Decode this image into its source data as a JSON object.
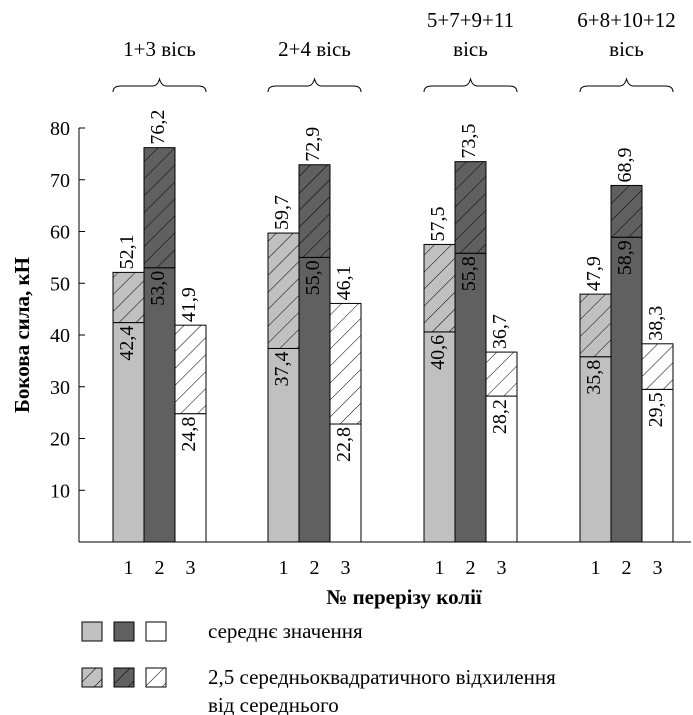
{
  "chart_data": {
    "type": "bar",
    "ylabel": "Бокова сила, кН",
    "xlabel": "№ перерізу колії",
    "ylim": [
      0,
      80
    ],
    "yticks": [
      10,
      20,
      30,
      40,
      50,
      60,
      70,
      80
    ],
    "groups": [
      {
        "title_lines": [
          "1+3 вісь"
        ],
        "bars": [
          {
            "section": "1",
            "mean": 42.4,
            "total": 52.1,
            "mean_label": "42,4",
            "total_label": "52,1"
          },
          {
            "section": "2",
            "mean": 53.0,
            "total": 76.2,
            "mean_label": "53,0",
            "total_label": "76,2"
          },
          {
            "section": "3",
            "mean": 24.8,
            "total": 41.9,
            "mean_label": "24,8",
            "total_label": "41,9"
          }
        ]
      },
      {
        "title_lines": [
          "2+4 вісь"
        ],
        "bars": [
          {
            "section": "1",
            "mean": 37.4,
            "total": 59.7,
            "mean_label": "37,4",
            "total_label": "59,7"
          },
          {
            "section": "2",
            "mean": 55.0,
            "total": 72.9,
            "mean_label": "55,0",
            "total_label": "72,9"
          },
          {
            "section": "3",
            "mean": 22.8,
            "total": 46.1,
            "mean_label": "22,8",
            "total_label": "46,1"
          }
        ]
      },
      {
        "title_lines": [
          "5+7+9+11",
          "вісь"
        ],
        "bars": [
          {
            "section": "1",
            "mean": 40.6,
            "total": 57.5,
            "mean_label": "40,6",
            "total_label": "57,5"
          },
          {
            "section": "2",
            "mean": 55.8,
            "total": 73.5,
            "mean_label": "55,8",
            "total_label": "73,5"
          },
          {
            "section": "3",
            "mean": 28.2,
            "total": 36.7,
            "mean_label": "28,2",
            "total_label": "36,7"
          }
        ]
      },
      {
        "title_lines": [
          "6+8+10+12",
          "вісь"
        ],
        "bars": [
          {
            "section": "1",
            "mean": 35.8,
            "total": 47.9,
            "mean_label": "35,8",
            "total_label": "47,9"
          },
          {
            "section": "2",
            "mean": 58.9,
            "total": 68.9,
            "mean_label": "58,9",
            "total_label": "68,9"
          },
          {
            "section": "3",
            "mean": 29.5,
            "total": 38.3,
            "mean_label": "29,5",
            "total_label": "38,3"
          }
        ]
      }
    ],
    "colors": {
      "section_1": "#c0c0c0",
      "section_2": "#606060",
      "section_3": "#ffffff",
      "outline": "#000000"
    },
    "legend": [
      {
        "label_lines": [
          "середнє значення"
        ],
        "style": "solid"
      },
      {
        "label_lines": [
          "2,5 середньоквадратичного відхилення",
          "від середнього"
        ],
        "style": "hatched"
      }
    ]
  }
}
